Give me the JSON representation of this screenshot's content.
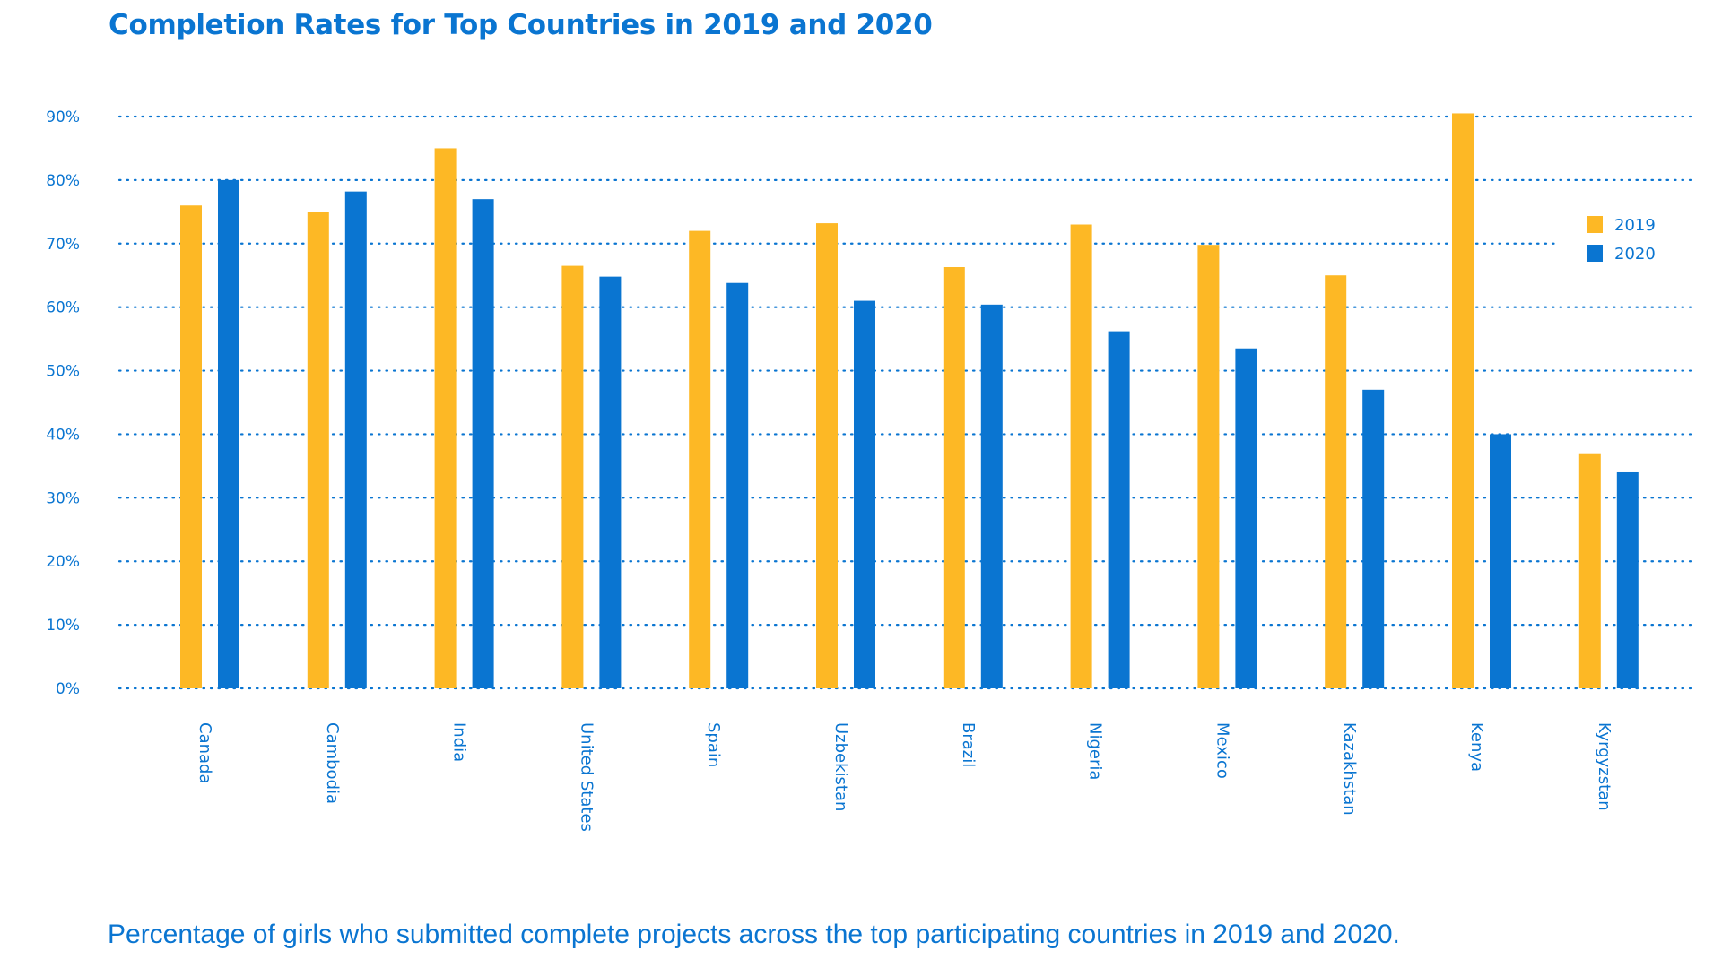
{
  "chart_data": {
    "type": "bar",
    "title": "Completion Rates for Top Countries in 2019 and 2020",
    "caption": "Percentage of girls who  submitted complete projects across the top participating countries in 2019 and 2020.",
    "xlabel": "",
    "ylabel": "",
    "ylim": [
      0,
      90
    ],
    "yticks": [
      0,
      10,
      20,
      30,
      40,
      50,
      60,
      70,
      80,
      90
    ],
    "ytick_labels": [
      "0%",
      "10%",
      "20%",
      "30%",
      "40%",
      "50%",
      "60%",
      "70%",
      "80%",
      "90%"
    ],
    "grid": true,
    "grid_style": "dotted",
    "legend_position": "right",
    "categories": [
      "Canada",
      "Cambodia",
      "India",
      "United States",
      "Spain",
      "Uzbekistan",
      "Brazil",
      "Nigeria",
      "Mexico",
      "Kazakhstan",
      "Kenya",
      "Kyrgyzstan"
    ],
    "series": [
      {
        "name": "2019",
        "color": "#FDB825",
        "values": [
          76,
          75,
          85,
          66.5,
          72,
          73.2,
          66.3,
          73,
          69.8,
          65,
          90.5,
          37
        ]
      },
      {
        "name": "2020",
        "color": "#0A75D1",
        "values": [
          80,
          78.2,
          77,
          64.8,
          63.8,
          61,
          60.4,
          56.2,
          53.5,
          47,
          40,
          34
        ]
      }
    ]
  },
  "colors": {
    "text": "#0A75D1",
    "grid": "#0A75D1"
  }
}
